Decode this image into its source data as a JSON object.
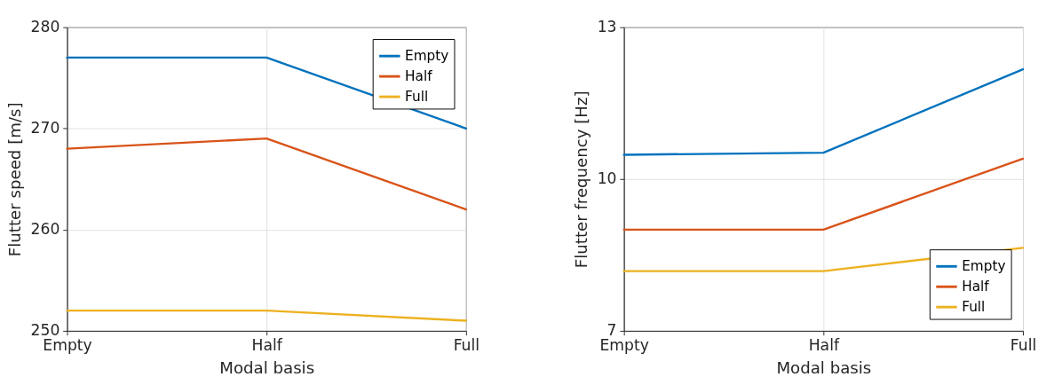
{
  "chart_data": [
    {
      "type": "line",
      "xlabel": "Modal basis",
      "ylabel": "Flutter speed [m/s]",
      "categories": [
        "Empty",
        "Half",
        "Full"
      ],
      "ylim": [
        250,
        280
      ],
      "yticks": [
        250,
        260,
        270,
        280
      ],
      "grid": true,
      "legend": "top right",
      "line_style": "solid",
      "series": [
        {
          "name": "Empty",
          "color": "#0072bd",
          "values": [
            277,
            277,
            270
          ]
        },
        {
          "name": "Half",
          "color": "#d95319",
          "values": [
            268,
            269,
            262
          ]
        },
        {
          "name": "Full",
          "color": "#edb120",
          "values": [
            252,
            252,
            251
          ]
        }
      ]
    },
    {
      "type": "line",
      "xlabel": "Modal basis",
      "ylabel": "Flutter frequency [Hz]",
      "categories": [
        "Empty",
        "Half",
        "Full"
      ],
      "ylim": [
        7,
        13
      ],
      "yticks": [
        7,
        10,
        13
      ],
      "grid": true,
      "legend": "bottom right",
      "line_style": "solid",
      "series": [
        {
          "name": "Empty",
          "color": "#0072bd",
          "values": [
            10.48,
            10.52,
            12.17
          ]
        },
        {
          "name": "Half",
          "color": "#d95319",
          "values": [
            9.0,
            9.0,
            10.4
          ]
        },
        {
          "name": "Full",
          "color": "#edb120",
          "values": [
            8.18,
            8.18,
            8.64
          ]
        }
      ]
    }
  ]
}
